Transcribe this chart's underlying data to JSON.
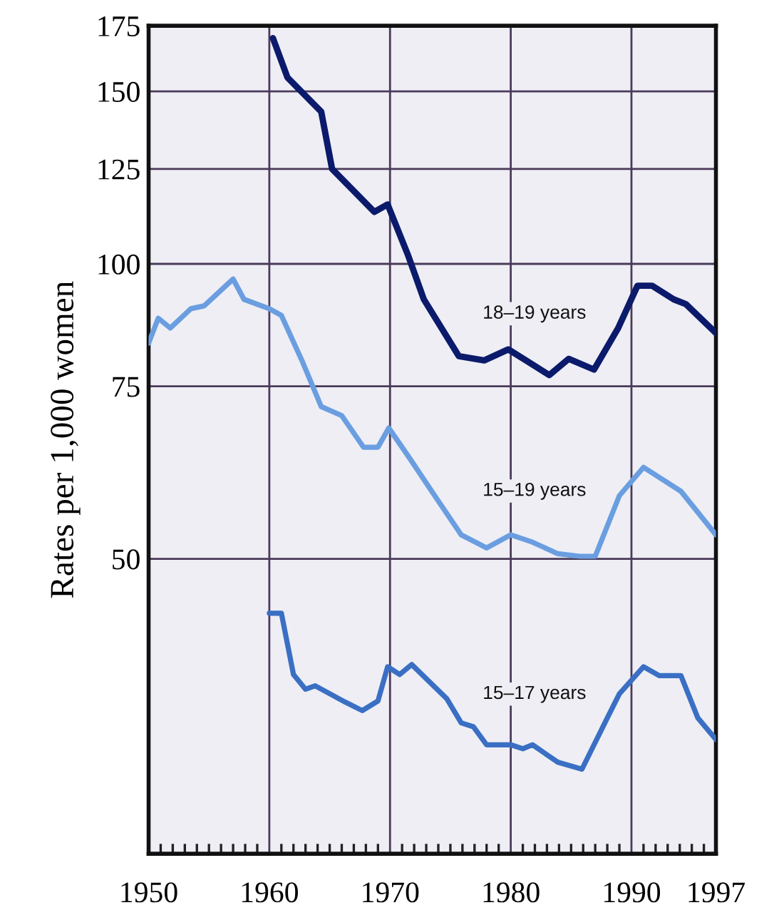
{
  "chart_data": {
    "type": "line",
    "ylabel": "Rates per 1,000 women",
    "log": "y",
    "xlim": [
      1950,
      1997
    ],
    "xticks": [
      1950,
      1960,
      1970,
      1980,
      1990,
      1997
    ],
    "ylim": [
      25,
      175
    ],
    "yticks": [
      50,
      75,
      100,
      125,
      150,
      175
    ],
    "grid": true,
    "legend": false,
    "marker": "none",
    "line_style": "solid",
    "series": [
      {
        "name": "18–19 years",
        "color": "#0c1a6b",
        "x": [
          1960.3,
          1961.5,
          1964.3,
          1965.2,
          1968.7,
          1969.8,
          1971.5,
          1972.8,
          1975.7,
          1977.8,
          1979.8,
          1983.2,
          1984.8,
          1986.9,
          1988.9,
          1990.5,
          1991.7,
          1993.5,
          1994.5,
          1997
        ],
        "values": [
          170,
          155,
          143,
          125,
          113,
          115,
          102,
          92,
          80.5,
          79.7,
          81.8,
          77,
          80,
          78,
          86,
          95,
          95,
          92,
          91,
          85
        ]
      },
      {
        "name": "15–19 years",
        "color": "#6a9ee0",
        "x": [
          1950,
          1950.8,
          1951.8,
          1953.5,
          1954.6,
          1957,
          1957.9,
          1960,
          1961,
          1962.7,
          1964.3,
          1966,
          1967.8,
          1969,
          1969.9,
          1971.6,
          1973.7,
          1975.9,
          1978,
          1980,
          1981.8,
          1983.9,
          1985.7,
          1987,
          1989,
          1991,
          1994.1,
          1997
        ],
        "values": [
          83,
          88,
          86,
          90,
          90.6,
          96.5,
          92,
          90,
          88.6,
          79.7,
          71.5,
          70,
          65,
          65,
          68,
          63.4,
          58,
          52.9,
          51.3,
          52.9,
          52,
          50.6,
          50.3,
          50.3,
          58,
          62,
          58.6,
          52.9
        ]
      },
      {
        "name": "15–17 years",
        "color": "#3a6fc4",
        "x": [
          1960,
          1961,
          1962,
          1963,
          1963.8,
          1966.3,
          1967.7,
          1969,
          1969.8,
          1970.8,
          1971.8,
          1974.7,
          1975.9,
          1976.9,
          1978,
          1980,
          1981,
          1981.8,
          1983.9,
          1985.9,
          1988,
          1989,
          1991,
          1992.3,
          1994.1,
          1995.5,
          1997
        ],
        "values": [
          44,
          44,
          38.1,
          36.8,
          37.1,
          35.7,
          35,
          35.8,
          38.8,
          38.1,
          39,
          36,
          34,
          33.7,
          32.3,
          32.3,
          32,
          32.3,
          31,
          30.5,
          34.4,
          36.4,
          38.8,
          38,
          38,
          34.4,
          32.7
        ]
      }
    ]
  }
}
